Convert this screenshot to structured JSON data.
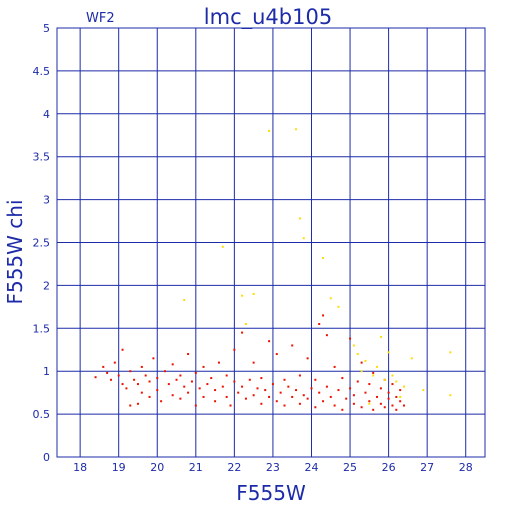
{
  "chart_data": {
    "type": "scatter",
    "title": "lmc_u4b105",
    "tag": "WF2",
    "xlabel": "F555W",
    "ylabel": "F555W chi",
    "xlim": [
      17.4,
      28.5
    ],
    "ylim": [
      0,
      5
    ],
    "xticks": [
      18,
      19,
      20,
      21,
      22,
      23,
      24,
      25,
      26,
      27,
      28
    ],
    "yticks": [
      0,
      0.5,
      1,
      1.5,
      2,
      2.5,
      3,
      3.5,
      4,
      4.5,
      5
    ],
    "ytick_labels": [
      "0",
      "0.5",
      "1",
      "1.5",
      "2",
      "2.5",
      "3",
      "3.5",
      "4",
      "4.5",
      "5"
    ],
    "grid": true,
    "colors": {
      "axis": "#1d2ba8",
      "primary": "#ee1100",
      "secondary": "#ffdd00"
    },
    "series": [
      {
        "color": "#ee1100",
        "points": [
          [
            18.4,
            0.93
          ],
          [
            18.6,
            1.05
          ],
          [
            18.7,
            0.98
          ],
          [
            18.8,
            0.9
          ],
          [
            18.9,
            1.1
          ],
          [
            19.0,
            0.95
          ],
          [
            19.1,
            0.85
          ],
          [
            19.1,
            1.25
          ],
          [
            19.2,
            0.8
          ],
          [
            19.3,
            0.6
          ],
          [
            19.3,
            1.0
          ],
          [
            19.4,
            0.9
          ],
          [
            19.5,
            0.85
          ],
          [
            19.5,
            0.62
          ],
          [
            19.6,
            1.05
          ],
          [
            19.6,
            0.75
          ],
          [
            19.7,
            0.95
          ],
          [
            19.8,
            0.7
          ],
          [
            19.8,
            0.88
          ],
          [
            19.9,
            1.15
          ],
          [
            20.0,
            0.78
          ],
          [
            20.0,
            0.92
          ],
          [
            20.1,
            0.65
          ],
          [
            20.2,
            1.0
          ],
          [
            20.3,
            0.85
          ],
          [
            20.4,
            0.72
          ],
          [
            20.4,
            1.08
          ],
          [
            20.5,
            0.9
          ],
          [
            20.6,
            0.68
          ],
          [
            20.6,
            0.95
          ],
          [
            20.7,
            0.82
          ],
          [
            20.8,
            1.2
          ],
          [
            20.8,
            0.75
          ],
          [
            20.9,
            0.88
          ],
          [
            21.0,
            0.6
          ],
          [
            21.0,
            0.98
          ],
          [
            21.1,
            0.8
          ],
          [
            21.2,
            0.7
          ],
          [
            21.2,
            1.05
          ],
          [
            21.3,
            0.85
          ],
          [
            21.4,
            0.92
          ],
          [
            21.5,
            0.65
          ],
          [
            21.5,
            0.78
          ],
          [
            21.6,
            1.1
          ],
          [
            21.7,
            0.82
          ],
          [
            21.8,
            0.7
          ],
          [
            21.8,
            0.95
          ],
          [
            21.9,
            0.6
          ],
          [
            22.0,
            0.88
          ],
          [
            22.0,
            1.25
          ],
          [
            22.1,
            0.75
          ],
          [
            22.2,
            0.82
          ],
          [
            22.2,
            1.45
          ],
          [
            22.3,
            0.68
          ],
          [
            22.4,
            0.9
          ],
          [
            22.5,
            0.72
          ],
          [
            22.5,
            1.1
          ],
          [
            22.6,
            0.8
          ],
          [
            22.7,
            0.62
          ],
          [
            22.7,
            0.92
          ],
          [
            22.8,
            0.78
          ],
          [
            22.9,
            1.35
          ],
          [
            22.9,
            0.7
          ],
          [
            23.0,
            0.85
          ],
          [
            23.1,
            0.65
          ],
          [
            23.1,
            1.2
          ],
          [
            23.2,
            0.75
          ],
          [
            23.3,
            0.9
          ],
          [
            23.3,
            0.6
          ],
          [
            23.4,
            0.82
          ],
          [
            23.5,
            1.3
          ],
          [
            23.5,
            0.7
          ],
          [
            23.6,
            0.78
          ],
          [
            23.7,
            0.62
          ],
          [
            23.7,
            0.95
          ],
          [
            23.8,
            0.72
          ],
          [
            23.9,
            1.15
          ],
          [
            23.9,
            0.68
          ],
          [
            24.0,
            0.8
          ],
          [
            24.1,
            0.58
          ],
          [
            24.1,
            0.9
          ],
          [
            24.2,
            0.75
          ],
          [
            24.2,
            1.55
          ],
          [
            24.3,
            0.65
          ],
          [
            24.3,
            1.65
          ],
          [
            24.4,
            0.82
          ],
          [
            24.4,
            1.42
          ],
          [
            24.5,
            0.7
          ],
          [
            24.6,
            0.6
          ],
          [
            24.6,
            1.05
          ],
          [
            24.7,
            0.78
          ],
          [
            24.8,
            0.55
          ],
          [
            24.8,
            0.92
          ],
          [
            24.9,
            0.68
          ],
          [
            25.0,
            0.8
          ],
          [
            25.0,
            1.38
          ],
          [
            25.1,
            0.62
          ],
          [
            25.1,
            0.72
          ],
          [
            25.2,
            0.88
          ],
          [
            25.3,
            0.58
          ],
          [
            25.3,
            1.1
          ],
          [
            25.4,
            0.75
          ],
          [
            25.5,
            0.65
          ],
          [
            25.5,
            0.85
          ],
          [
            25.6,
            0.55
          ],
          [
            25.6,
            0.98
          ],
          [
            25.7,
            0.7
          ],
          [
            25.8,
            0.62
          ],
          [
            25.8,
            0.8
          ],
          [
            25.9,
            0.58
          ],
          [
            25.9,
            0.9
          ],
          [
            26.0,
            0.68
          ],
          [
            26.0,
            0.75
          ],
          [
            26.1,
            0.6
          ],
          [
            26.1,
            0.85
          ],
          [
            26.2,
            0.7
          ],
          [
            26.2,
            0.55
          ],
          [
            26.3,
            0.78
          ],
          [
            26.3,
            0.65
          ],
          [
            26.4,
            0.6
          ]
        ]
      },
      {
        "color": "#ffdd00",
        "points": [
          [
            20.7,
            1.83
          ],
          [
            21.7,
            2.45
          ],
          [
            22.2,
            1.88
          ],
          [
            22.3,
            1.55
          ],
          [
            22.5,
            1.9
          ],
          [
            22.9,
            3.8
          ],
          [
            23.6,
            3.82
          ],
          [
            23.7,
            2.78
          ],
          [
            23.8,
            2.55
          ],
          [
            24.3,
            2.32
          ],
          [
            24.5,
            1.85
          ],
          [
            24.7,
            1.75
          ],
          [
            25.1,
            1.3
          ],
          [
            25.2,
            1.2
          ],
          [
            25.4,
            1.12
          ],
          [
            25.6,
            0.95
          ],
          [
            25.7,
            1.05
          ],
          [
            25.8,
            1.4
          ],
          [
            25.9,
            0.9
          ],
          [
            26.0,
            1.22
          ],
          [
            26.1,
            0.95
          ],
          [
            26.2,
            0.88
          ],
          [
            26.3,
            0.7
          ],
          [
            26.4,
            0.82
          ],
          [
            26.9,
            0.78
          ],
          [
            27.6,
            1.22
          ],
          [
            27.6,
            0.72
          ],
          [
            26.6,
            1.15
          ],
          [
            25.3,
            1.0
          ],
          [
            25.5,
            0.62
          ]
        ]
      }
    ]
  }
}
